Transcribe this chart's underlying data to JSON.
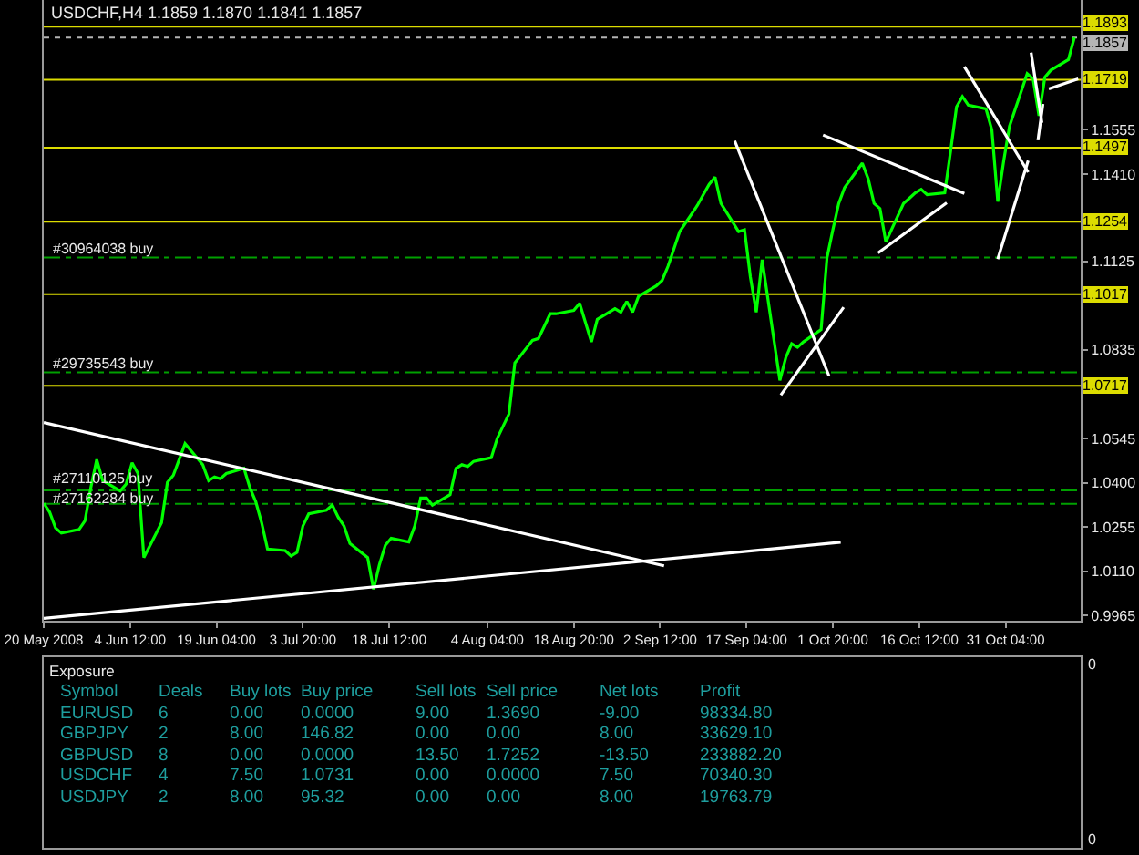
{
  "chart_data": [
    {
      "type": "line",
      "title": "USDCHF,H4 1.1859 1.1870 1.1841 1.1857",
      "x": [
        "2008-05-20T20:00",
        "2008-05-21T20:00",
        "2008-05-22T20:00",
        "2008-05-23T20:00",
        "2008-05-26T20:00",
        "2008-05-27T20:00",
        "2008-05-28T20:00",
        "2008-05-29T20:00",
        "2008-05-30T20:00",
        "2008-06-02T20:00",
        "2008-06-03T20:00",
        "2008-06-04T20:00",
        "2008-06-05T20:00",
        "2008-06-06T20:00",
        "2008-06-09T20:00",
        "2008-06-10T20:00",
        "2008-06-11T20:00",
        "2008-06-12T20:00",
        "2008-06-13T20:00",
        "2008-06-16T20:00",
        "2008-06-17T20:00",
        "2008-06-18T20:00",
        "2008-06-19T20:00",
        "2008-06-20T20:00",
        "2008-06-23T20:00",
        "2008-06-24T20:00",
        "2008-06-25T20:00",
        "2008-06-26T20:00",
        "2008-06-27T20:00",
        "2008-06-30T20:00",
        "2008-07-01T20:00",
        "2008-07-02T20:00",
        "2008-07-03T20:00",
        "2008-07-04T20:00",
        "2008-07-07T20:00",
        "2008-07-08T20:00",
        "2008-07-09T20:00",
        "2008-07-10T20:00",
        "2008-07-11T20:00",
        "2008-07-14T20:00",
        "2008-07-15T20:00",
        "2008-07-16T20:00",
        "2008-07-17T20:00",
        "2008-07-18T20:00",
        "2008-07-21T20:00",
        "2008-07-22T20:00",
        "2008-07-23T20:00",
        "2008-07-24T20:00",
        "2008-07-25T20:00",
        "2008-07-28T20:00",
        "2008-07-29T20:00",
        "2008-07-30T20:00",
        "2008-07-31T20:00",
        "2008-08-01T20:00",
        "2008-08-04T20:00",
        "2008-08-05T20:00",
        "2008-08-06T20:00",
        "2008-08-07T20:00",
        "2008-08-08T20:00",
        "2008-08-11T20:00",
        "2008-08-12T20:00",
        "2008-08-13T20:00",
        "2008-08-14T20:00",
        "2008-08-15T20:00",
        "2008-08-18T20:00",
        "2008-08-19T20:00",
        "2008-08-20T20:00",
        "2008-08-21T20:00",
        "2008-08-22T20:00",
        "2008-08-25T20:00",
        "2008-08-26T20:00",
        "2008-08-27T20:00",
        "2008-08-28T20:00",
        "2008-08-29T20:00",
        "2008-09-01T20:00",
        "2008-09-02T20:00",
        "2008-09-03T20:00",
        "2008-09-04T20:00",
        "2008-09-05T20:00",
        "2008-09-08T20:00",
        "2008-09-09T20:00",
        "2008-09-10T20:00",
        "2008-09-11T20:00",
        "2008-09-12T20:00",
        "2008-09-15T20:00",
        "2008-09-16T20:00",
        "2008-09-17T20:00",
        "2008-09-18T20:00",
        "2008-09-19T20:00",
        "2008-09-22T20:00",
        "2008-09-23T20:00",
        "2008-09-24T20:00",
        "2008-09-25T20:00",
        "2008-09-26T20:00",
        "2008-09-29T20:00",
        "2008-09-30T20:00",
        "2008-10-01T20:00",
        "2008-10-02T20:00",
        "2008-10-03T20:00",
        "2008-10-06T20:00",
        "2008-10-07T20:00",
        "2008-10-08T20:00",
        "2008-10-09T20:00",
        "2008-10-10T20:00",
        "2008-10-13T20:00",
        "2008-10-14T20:00",
        "2008-10-15T20:00",
        "2008-10-16T20:00",
        "2008-10-17T20:00",
        "2008-10-20T20:00",
        "2008-10-21T20:00",
        "2008-10-22T20:00",
        "2008-10-23T20:00",
        "2008-10-24T20:00",
        "2008-10-27T20:00",
        "2008-10-28T20:00",
        "2008-10-29T20:00",
        "2008-10-30T20:00",
        "2008-10-31T20:00",
        "2008-11-03T20:00",
        "2008-11-04T20:00",
        "2008-11-05T20:00",
        "2008-11-06T20:00",
        "2008-11-07T20:00",
        "2008-11-10T20:00",
        "2008-11-11T20:00"
      ],
      "series": [
        {
          "color": "#00ff00",
          "values": [
            1.0333,
            1.0304,
            1.0252,
            1.0235,
            1.0247,
            1.0275,
            1.0384,
            1.0476,
            1.0407,
            1.0373,
            1.0396,
            1.0465,
            1.043,
            1.0155,
            1.0269,
            1.0401,
            1.0424,
            1.0476,
            1.0528,
            1.0459,
            1.0407,
            1.0419,
            1.0413,
            1.043,
            1.0447,
            1.0384,
            1.0338,
            1.0269,
            1.0183,
            1.0178,
            1.016,
            1.0172,
            1.0258,
            1.0298,
            1.031,
            1.0327,
            1.0287,
            1.0258,
            1.0201,
            1.0155,
            1.0051,
            1.0132,
            1.0195,
            1.0218,
            1.0206,
            1.0258,
            1.035,
            1.035,
            1.0327,
            1.0361,
            1.0447,
            1.0459,
            1.0453,
            1.047,
            1.0482,
            1.0545,
            1.0585,
            1.0625,
            1.0792,
            1.0866,
            1.0872,
            1.0912,
            1.0953,
            1.0953,
            1.0964,
            1.0987,
            1.0924,
            1.0861,
            1.0935,
            1.097,
            1.0958,
            1.0993,
            1.0958,
            1.101,
            1.1044,
            1.1062,
            1.1108,
            1.1165,
            1.1222,
            1.1308,
            1.1343,
            1.1377,
            1.14,
            1.1314,
            1.1222,
            1.1228,
            1.1073,
            1.0958,
            1.113,
            1.0735,
            1.0809,
            1.0855,
            1.0843,
            1.0861,
            1.0901,
            1.1136,
            1.1228,
            1.1314,
            1.1366,
            1.1446,
            1.1395,
            1.1314,
            1.1297,
            1.1188,
            1.1314,
            1.1331,
            1.1349,
            1.136,
            1.1343,
            1.1349,
            1.1486,
            1.163,
            1.1664,
            1.1636,
            1.1624,
            1.1555,
            1.132,
            1.1452,
            1.1567,
            1.1739,
            1.1722,
            1.1601,
            1.1727,
            1.175,
            1.1785,
            1.1857
          ]
        },
        {
          "color": "#ffffff",
          "x": [
            "2008-05-20T20:00",
            "2008-09-03T04:00"
          ],
          "values": [
            1.0597,
            1.0128
          ]
        },
        {
          "color": "#ffffff",
          "x": [
            "2008-05-20T20:00",
            "2008-10-03T04:00"
          ],
          "values": [
            0.9956,
            1.0205
          ]
        },
        {
          "color": "#ffffff",
          "x": [
            "2008-09-15T04:00",
            "2008-10-01T04:00"
          ],
          "values": [
            1.1519,
            1.075
          ]
        },
        {
          "color": "#ffffff",
          "x": [
            "2008-09-23T00:00",
            "2008-10-03T16:00"
          ],
          "values": [
            1.0687,
            1.0974
          ]
        },
        {
          "color": "#ffffff",
          "x": [
            "2008-09-30T04:00",
            "2008-10-24T04:00"
          ],
          "values": [
            1.1538,
            1.1347
          ]
        },
        {
          "color": "#ffffff",
          "x": [
            "2008-10-09T12:00",
            "2008-10-21T04:00"
          ],
          "values": [
            1.1152,
            1.1316
          ]
        },
        {
          "color": "#ffffff",
          "x": [
            "2008-10-24T04:00",
            "2008-11-04T00:00"
          ],
          "values": [
            1.1762,
            1.1416
          ]
        },
        {
          "color": "#ffffff",
          "x": [
            "2008-10-29T20:00",
            "2008-11-04T00:00"
          ],
          "values": [
            1.1132,
            1.1454
          ]
        },
        {
          "color": "#ffffff",
          "x": [
            "2008-11-04T12:00",
            "2008-11-06T08:00"
          ],
          "values": [
            1.1808,
            1.1578
          ]
        },
        {
          "color": "#ffffff",
          "x": [
            "2008-11-05T16:00",
            "2008-11-06T12:00"
          ],
          "values": [
            1.1521,
            1.164
          ]
        },
        {
          "color": "#ffffff",
          "x": [
            "2008-11-07T12:00",
            "2008-11-12T12:00"
          ],
          "values": [
            1.1689,
            1.1722
          ]
        }
      ],
      "xlim": [
        "2008-05-20T20:00",
        "2008-11-12T22:00"
      ],
      "ylim": [
        0.9948,
        1.198
      ],
      "xticks": [
        {
          "value": "2008-05-20T20:00",
          "label": "20 May 2008"
        },
        {
          "value": "2008-06-04T12:00",
          "label": "4 Jun 12:00"
        },
        {
          "value": "2008-06-19T04:00",
          "label": "19 Jun 04:00"
        },
        {
          "value": "2008-07-03T20:00",
          "label": "3 Jul 20:00"
        },
        {
          "value": "2008-07-18T12:00",
          "label": "18 Jul 12:00"
        },
        {
          "value": "2008-08-04T04:00",
          "label": "4 Aug 04:00"
        },
        {
          "value": "2008-08-18T20:00",
          "label": "18 Aug 20:00"
        },
        {
          "value": "2008-09-02T12:00",
          "label": "2 Sep 12:00"
        },
        {
          "value": "2008-09-17T04:00",
          "label": "17 Sep 04:00"
        },
        {
          "value": "2008-10-01T20:00",
          "label": "1 Oct 20:00"
        },
        {
          "value": "2008-10-16T12:00",
          "label": "16 Oct 12:00"
        },
        {
          "value": "2008-10-31T04:00",
          "label": "31 Oct 04:00"
        }
      ],
      "yticks": [
        0.9965,
        {
          "value": 1.011,
          "label": "1.0110"
        },
        1.0255,
        {
          "value": 1.04,
          "label": "1.0400"
        },
        1.0545,
        1.0835,
        1.1125,
        {
          "value": 1.141,
          "label": "1.1410"
        },
        1.1555
      ],
      "ref_lines": [
        {
          "axis": "y",
          "value": 1.1893,
          "label": "1.1893",
          "color": "#dcdc00"
        },
        {
          "axis": "y",
          "value": 1.1857,
          "label": "1.1857",
          "color": "#b4b4b4",
          "line_style": "dotted"
        },
        {
          "axis": "y",
          "value": 1.1719,
          "label": "1.1719",
          "color": "#dcdc00"
        },
        {
          "axis": "y",
          "value": 1.1497,
          "label": "1.1497",
          "color": "#dcdc00"
        },
        {
          "axis": "y",
          "value": 1.1254,
          "label": "1.1254",
          "color": "#dcdc00"
        },
        {
          "axis": "y",
          "value": 1.1017,
          "label": "1.1017",
          "color": "#dcdc00"
        },
        {
          "axis": "y",
          "value": 1.0717,
          "label": "1.0717",
          "color": "#dcdc00"
        },
        {
          "axis": "y",
          "value": 1.1137,
          "label": "#30964038 buy",
          "color": "#00a000",
          "line_style": "dashdot"
        },
        {
          "axis": "y",
          "value": 1.0761,
          "label": "#29735543 buy",
          "color": "#00a000",
          "line_style": "dashdot"
        },
        {
          "axis": "y",
          "value": 1.0375,
          "label": "#27110125 buy",
          "color": "#00a000",
          "line_style": "dashdot"
        },
        {
          "axis": "y",
          "value": 1.0331,
          "label": "#27162284 buy",
          "color": "#00a000",
          "line_style": "dashdot"
        }
      ]
    },
    {
      "type": "other",
      "title": "Exposure",
      "ylabel": "Symbol",
      "color": "#1e9e9e",
      "categories": [
        "Deals",
        "Buy lots",
        "Buy price",
        "Sell lots",
        "Sell price",
        "Net lots",
        "Profit"
      ],
      "y_categories": [
        "EURUSD",
        "GBPJPY",
        "GBPUSD",
        "USDCHF",
        "USDJPY"
      ],
      "cell_labels": [
        [
          "6",
          "0.00",
          "0.0000",
          "9.00",
          "1.3690",
          "-9.00",
          "98334.80"
        ],
        [
          "2",
          "8.00",
          "146.82",
          "0.00",
          "0.00",
          "8.00",
          "33629.10"
        ],
        [
          "8",
          "0.00",
          "0.0000",
          "13.50",
          "1.7252",
          "-13.50",
          "233882.20"
        ],
        [
          "4",
          "7.50",
          "1.0731",
          "0.00",
          "0.0000",
          "7.50",
          "70340.30"
        ],
        [
          "2",
          "8.00",
          "95.32",
          "0.00",
          "0.00",
          "8.00",
          "19763.79"
        ]
      ],
      "annotations": [
        "0",
        "0"
      ]
    }
  ]
}
